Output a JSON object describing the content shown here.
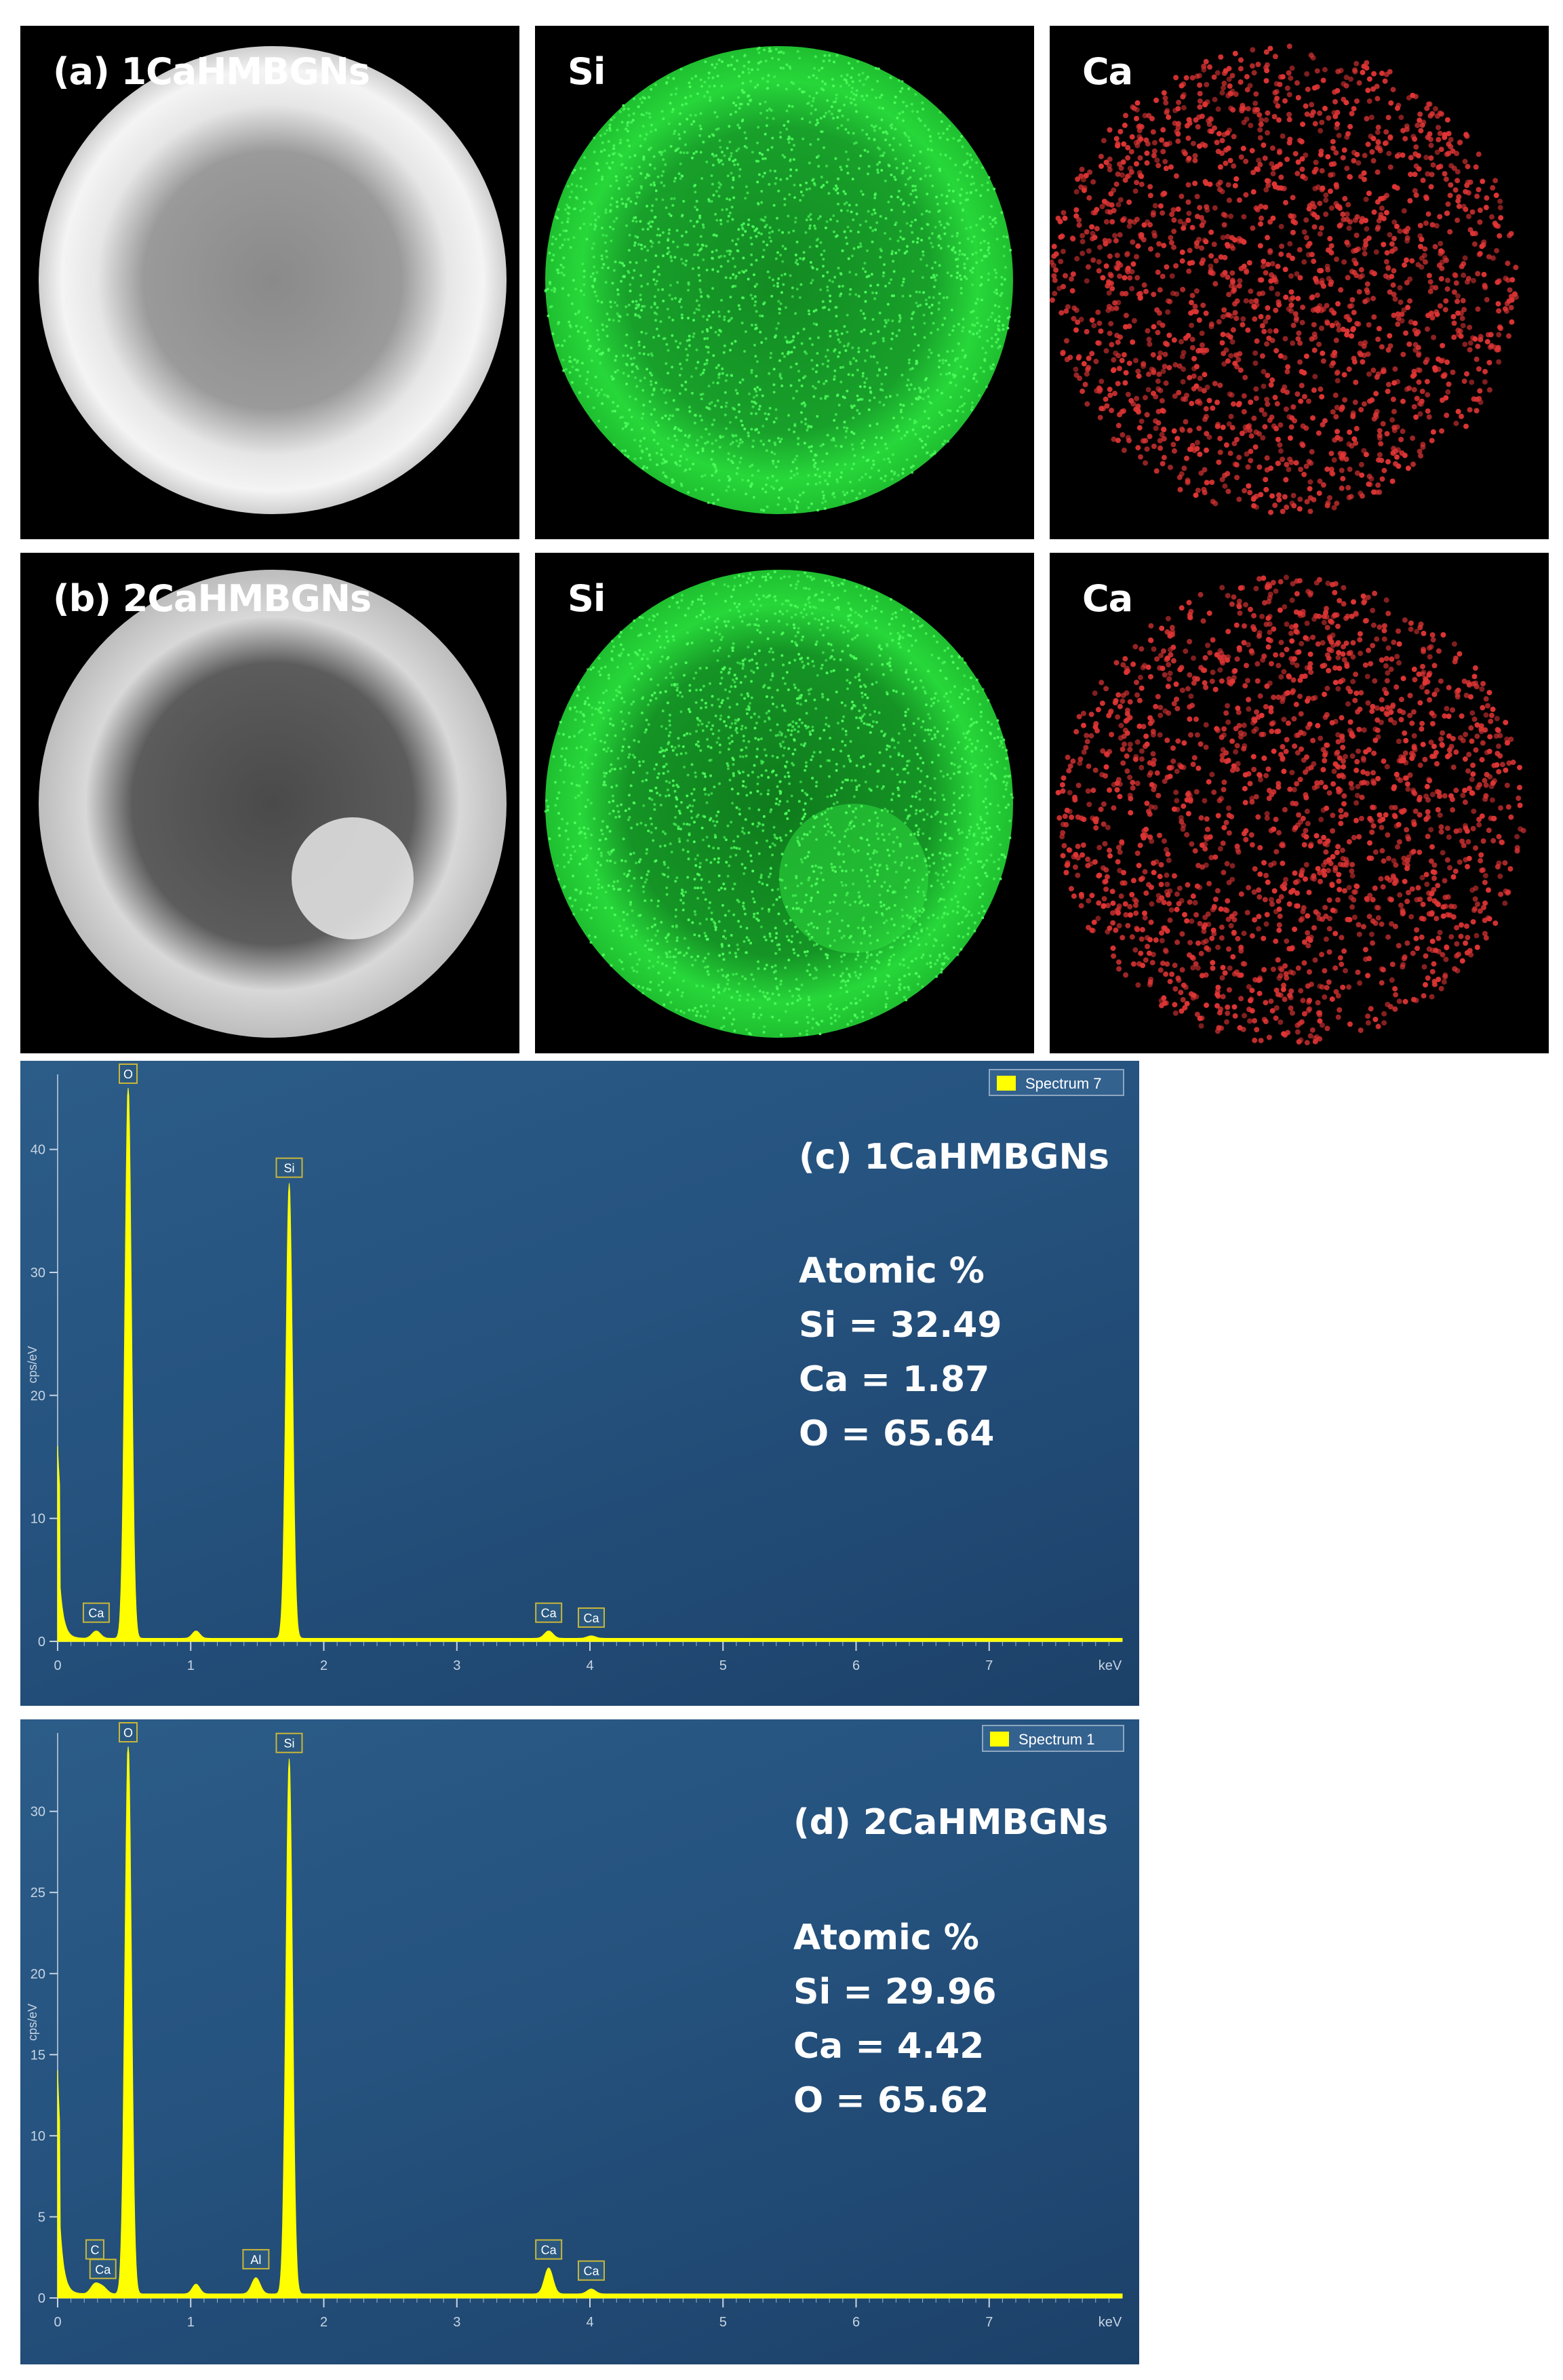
{
  "maps": {
    "row_a": {
      "label": "(a) 1CaHMBGNs",
      "si_label": "Si",
      "ca_label": "Ca"
    },
    "row_b": {
      "label": "(b) 2CaHMBGNs",
      "si_label": "Si",
      "ca_label": "Ca"
    }
  },
  "colors": {
    "si_map": "#27d83a",
    "ca_map": "#e03535",
    "spectrum": "#ffff00",
    "spectrum_bg": "#25527e"
  },
  "chart_data": [
    {
      "type": "line",
      "title": "(c) 1CaHMBGNs",
      "legend": "Spectrum 7",
      "ylabel": "cps/eV",
      "xlabel": "keV",
      "xlim": [
        0,
        8
      ],
      "ylim": [
        0,
        45
      ],
      "xticks": [
        "0",
        "1",
        "2",
        "3",
        "4",
        "5",
        "6",
        "7"
      ],
      "yticks": [
        "0",
        "10",
        "20",
        "30",
        "40"
      ],
      "peaks": [
        {
          "label": "Ca",
          "x": 0.29,
          "y": 0.6
        },
        {
          "label": "O",
          "x": 0.53,
          "y": 45
        },
        {
          "label": "Si",
          "x": 1.74,
          "y": 37
        },
        {
          "label": "Ca",
          "x": 3.69,
          "y": 0.6
        },
        {
          "label": "Ca",
          "x": 4.01,
          "y": 0.2
        }
      ],
      "atomic": {
        "heading": "Atomic %",
        "si": "Si = 32.49",
        "ca": "Ca = 1.87",
        "o": "O = 65.64"
      }
    },
    {
      "type": "line",
      "title": "(d) 2CaHMBGNs",
      "legend": "Spectrum 1",
      "ylabel": "cps/eV",
      "xlabel": "keV",
      "xlim": [
        0,
        8
      ],
      "ylim": [
        0,
        34
      ],
      "xticks": [
        "0",
        "1",
        "2",
        "3",
        "4",
        "5",
        "6",
        "7"
      ],
      "yticks": [
        "0",
        "5",
        "10",
        "15",
        "20",
        "25",
        "30"
      ],
      "peaks": [
        {
          "label": "C",
          "x": 0.28,
          "y": 0.6
        },
        {
          "label": "Ca",
          "x": 0.34,
          "y": 0.4
        },
        {
          "label": "O",
          "x": 0.53,
          "y": 34
        },
        {
          "label": "Al",
          "x": 1.49,
          "y": 1.0
        },
        {
          "label": "Si",
          "x": 1.74,
          "y": 33
        },
        {
          "label": "Ca",
          "x": 3.69,
          "y": 1.6
        },
        {
          "label": "Ca",
          "x": 4.01,
          "y": 0.3
        }
      ],
      "atomic": {
        "heading": "Atomic %",
        "si": "Si = 29.96",
        "ca": "Ca = 4.42",
        "o": "O = 65.62"
      }
    }
  ]
}
